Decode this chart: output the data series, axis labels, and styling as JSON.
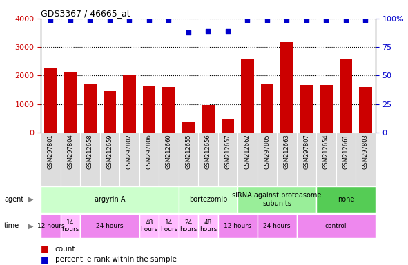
{
  "title": "GDS3367 / 46665_at",
  "samples": [
    "GSM297801",
    "GSM297804",
    "GSM212658",
    "GSM212659",
    "GSM297802",
    "GSM297806",
    "GSM212660",
    "GSM212655",
    "GSM212656",
    "GSM212657",
    "GSM212662",
    "GSM297805",
    "GSM212663",
    "GSM297807",
    "GSM212654",
    "GSM212661",
    "GSM297803"
  ],
  "counts": [
    2250,
    2120,
    1720,
    1460,
    2030,
    1620,
    1590,
    370,
    960,
    450,
    2560,
    1730,
    3170,
    1680,
    1680,
    2560,
    1600
  ],
  "percentiles": [
    99,
    99,
    99,
    99,
    99,
    99,
    99,
    88,
    89,
    89,
    99,
    99,
    99,
    99,
    99,
    99,
    99
  ],
  "bar_color": "#cc0000",
  "dot_color": "#0000cc",
  "ylim_left": [
    0,
    4000
  ],
  "ylim_right": [
    0,
    100
  ],
  "yticks_left": [
    0,
    1000,
    2000,
    3000,
    4000
  ],
  "yticks_right": [
    0,
    25,
    50,
    75,
    100
  ],
  "agent_groups": [
    {
      "label": "argyrin A",
      "start": 0,
      "end": 7,
      "color": "#ccffcc"
    },
    {
      "label": "bortezomib",
      "start": 7,
      "end": 10,
      "color": "#ccffcc"
    },
    {
      "label": "siRNA against proteasome\nsubunits",
      "start": 10,
      "end": 14,
      "color": "#99ee99"
    },
    {
      "label": "none",
      "start": 14,
      "end": 17,
      "color": "#55cc55"
    }
  ],
  "time_groups": [
    {
      "label": "12 hours",
      "start": 0,
      "end": 1,
      "color": "#ee88ee"
    },
    {
      "label": "14\nhours",
      "start": 1,
      "end": 2,
      "color": "#ffbbff"
    },
    {
      "label": "24 hours",
      "start": 2,
      "end": 5,
      "color": "#ee88ee"
    },
    {
      "label": "48\nhours",
      "start": 5,
      "end": 6,
      "color": "#ffbbff"
    },
    {
      "label": "14\nhours",
      "start": 6,
      "end": 7,
      "color": "#ffbbff"
    },
    {
      "label": "24\nhours",
      "start": 7,
      "end": 8,
      "color": "#ffbbff"
    },
    {
      "label": "48\nhours",
      "start": 8,
      "end": 9,
      "color": "#ffbbff"
    },
    {
      "label": "12 hours",
      "start": 9,
      "end": 11,
      "color": "#ee88ee"
    },
    {
      "label": "24 hours",
      "start": 11,
      "end": 13,
      "color": "#ee88ee"
    },
    {
      "label": "control",
      "start": 13,
      "end": 17,
      "color": "#ee88ee"
    }
  ],
  "legend_count_color": "#cc0000",
  "legend_dot_color": "#0000cc"
}
